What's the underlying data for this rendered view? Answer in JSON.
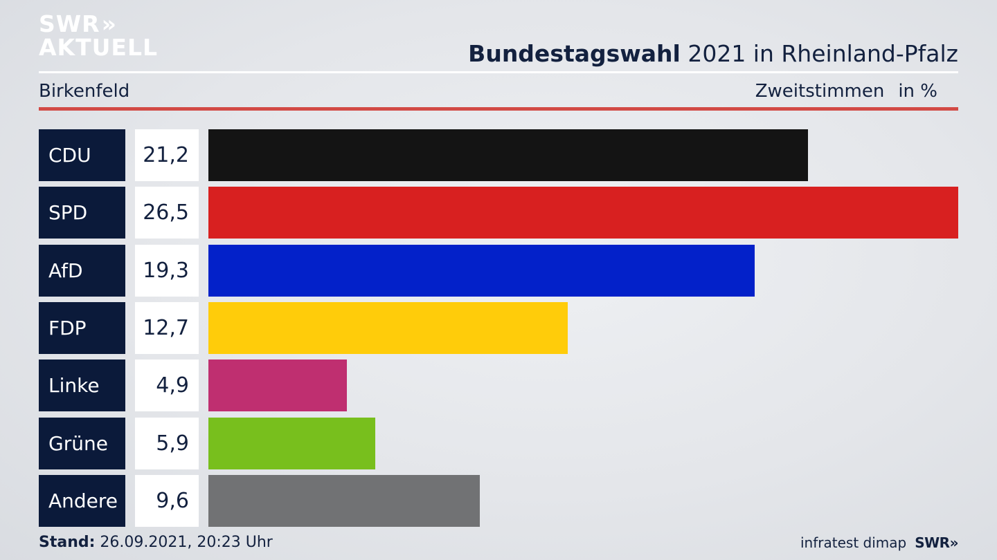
{
  "logo": {
    "line1": "SWR",
    "chevrons": "»",
    "line2": "AKTUELL"
  },
  "header": {
    "title_bold": "Bundestagswahl",
    "title_rest": "2021 in Rheinland-Pfalz",
    "region": "Birkenfeld",
    "metric": "Zweitstimmen",
    "unit": "in %"
  },
  "footer": {
    "stand_label": "Stand:",
    "stand_value": "26.09.2021, 20:23 Uhr",
    "source": "infratest dimap",
    "brand": "SWR»"
  },
  "chart_data": {
    "type": "bar",
    "orientation": "horizontal",
    "categories": [
      "CDU",
      "SPD",
      "AfD",
      "FDP",
      "Linke",
      "Grüne",
      "Andere"
    ],
    "values": [
      21.2,
      26.5,
      19.3,
      12.7,
      4.9,
      5.9,
      9.6
    ],
    "labels": [
      "21,2",
      "26,5",
      "19,3",
      "12,7",
      "4,9",
      "5,9",
      "9,6"
    ],
    "colors": [
      "#141414",
      "#d82020",
      "#0321c9",
      "#ffcc0a",
      "#bf2f70",
      "#78bf1d",
      "#717274"
    ],
    "unit": "in %"
  }
}
